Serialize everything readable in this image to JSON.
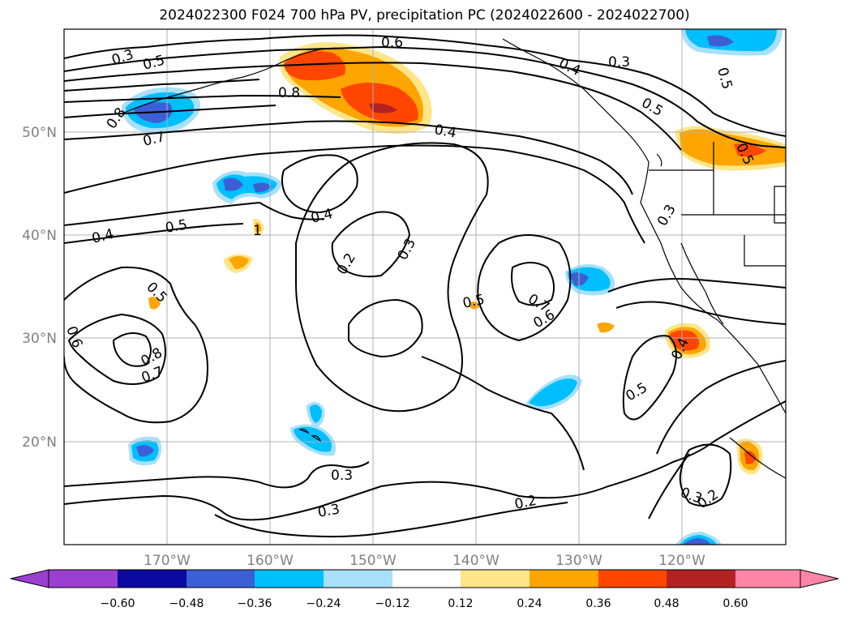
{
  "title": "2024022300 F024 700 hPa PV, precipitation PC (2024022600 - 2024022700)",
  "map": {
    "lat_labels": [
      "50°N",
      "40°N",
      "30°N",
      "20°N"
    ],
    "lon_labels": [
      "170°W",
      "160°W",
      "150°W",
      "140°W",
      "130°W",
      "120°W"
    ],
    "contour_labels": [
      "0.3",
      "0.4",
      "0.5",
      "0.6",
      "0.4",
      "0.3",
      "0.8",
      "0.7",
      "0.5",
      "0.4",
      "0.5",
      "0.4",
      "0.4",
      "0.3",
      "0.5",
      "0.2",
      "0.3",
      "0.5",
      "0.7",
      "0.6",
      "0.4",
      "0.5",
      "0.6",
      "0.8",
      "0.7",
      "0.5",
      "0.3",
      "0.3",
      "0.2",
      "0.3",
      "0.2",
      "0.4",
      "0.8",
      "0.5",
      "1"
    ]
  },
  "colorbar": {
    "ticks": [
      "−0.60",
      "−0.48",
      "−0.36",
      "−0.24",
      "−0.12",
      "0.12",
      "0.24",
      "0.36",
      "0.48",
      "0.60"
    ],
    "colors": [
      "#9a3fd0",
      "#2a1ec0",
      "#0a0aa0",
      "#3c5fd6",
      "#00bfff",
      "#a8e0fa",
      "#ffffff",
      "#fde68a",
      "#ffa500",
      "#ff4500",
      "#b22222",
      "#ff85a8"
    ]
  }
}
